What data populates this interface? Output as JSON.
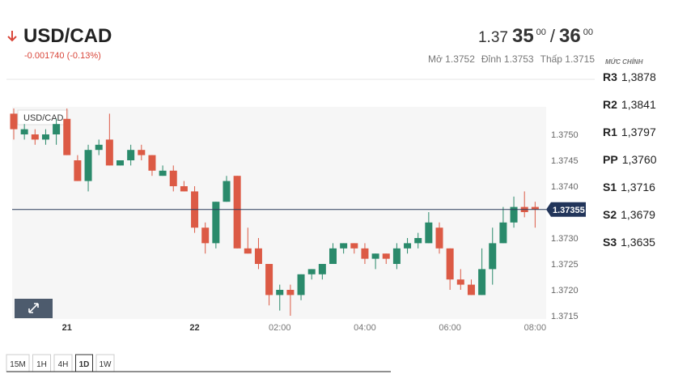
{
  "header": {
    "symbol": "USD/CAD",
    "change": "-0.001740 (-0.13%)",
    "bid": {
      "big": "1.37",
      "pips": "35",
      "fraction": "00"
    },
    "separator": "/",
    "ask": {
      "pips": "36",
      "fraction": "00"
    },
    "stats": [
      "Mở 1.3752",
      "Đỉnh 1.3753",
      "Thấp 1.3715"
    ]
  },
  "pivots": {
    "title": "MỨC CHÍNH",
    "rows": [
      {
        "label": "R3",
        "value": "1,3878"
      },
      {
        "label": "R2",
        "value": "1,3841"
      },
      {
        "label": "R1",
        "value": "1,3797"
      },
      {
        "label": "PP",
        "value": "1,3760"
      },
      {
        "label": "S1",
        "value": "1,3716"
      },
      {
        "label": "S2",
        "value": "1,3679"
      },
      {
        "label": "S3",
        "value": "1,3635"
      }
    ]
  },
  "timeframes": {
    "items": [
      "15M",
      "1H",
      "4H",
      "1D",
      "1W"
    ],
    "active": 3
  },
  "chart_data": {
    "type": "candlestick",
    "label": "USD/CAD",
    "categories": [
      null,
      null,
      null,
      null,
      null,
      "21",
      null,
      null,
      null,
      null,
      null,
      null,
      null,
      null,
      null,
      null,
      null,
      "22",
      null,
      null,
      null,
      null,
      null,
      null,
      null,
      "02:00",
      null,
      null,
      null,
      null,
      null,
      null,
      null,
      "04:00",
      null,
      null,
      null,
      null,
      null,
      null,
      null,
      "06:00",
      null,
      null,
      null,
      null,
      null,
      null,
      null,
      "08:00"
    ],
    "open": [
      1.3754,
      1.375,
      1.375,
      1.3749,
      1.375,
      1.3753,
      1.3745,
      1.3741,
      1.3747,
      1.3749,
      1.3744,
      1.3745,
      1.3747,
      1.3746,
      1.3742,
      1.3743,
      1.374,
      1.3739,
      1.3732,
      1.3729,
      1.3737,
      1.3742,
      1.3728,
      1.3728,
      1.3725,
      1.3719,
      1.372,
      1.3719,
      1.3723,
      1.3723,
      1.3725,
      1.3728,
      1.3729,
      1.3728,
      1.3726,
      1.3727,
      1.3725,
      1.3728,
      1.3729,
      1.3729,
      1.3732,
      1.3728,
      1.3722,
      1.3721,
      1.3719,
      1.3724,
      1.3729,
      1.3733,
      1.3736,
      1.3736
    ],
    "high": [
      1.3755,
      1.3752,
      1.3751,
      1.3751,
      1.3753,
      1.3755,
      1.3746,
      1.3748,
      1.3749,
      1.3754,
      1.3745,
      1.3748,
      1.3748,
      1.3746,
      1.3744,
      1.3744,
      1.3741,
      1.374,
      1.3733,
      1.3737,
      1.3742,
      1.3742,
      1.3732,
      1.373,
      1.3725,
      1.3721,
      1.3721,
      1.3723,
      1.3724,
      1.3725,
      1.3729,
      1.3729,
      1.3729,
      1.3729,
      1.3727,
      1.3727,
      1.3729,
      1.373,
      1.3731,
      1.3735,
      1.3733,
      1.3728,
      1.3724,
      1.3722,
      1.3728,
      1.3732,
      1.3736,
      1.3738,
      1.3739,
      1.3737
    ],
    "low": [
      1.3749,
      1.3749,
      1.3748,
      1.3748,
      1.3748,
      1.3746,
      1.3741,
      1.3739,
      1.3746,
      1.3744,
      1.3744,
      1.3744,
      1.3745,
      1.3742,
      1.3742,
      1.3739,
      1.3739,
      1.3731,
      1.3727,
      1.3728,
      1.3737,
      1.3728,
      1.3727,
      1.3724,
      1.3717,
      1.3716,
      1.3715,
      1.3718,
      1.3722,
      1.3722,
      1.3725,
      1.3727,
      1.3727,
      1.3725,
      1.3724,
      1.3725,
      1.3724,
      1.3727,
      1.3728,
      1.3729,
      1.3727,
      1.372,
      1.372,
      1.3719,
      1.3719,
      1.3721,
      1.3729,
      1.3732,
      1.3734,
      1.3732
    ],
    "close": [
      1.3751,
      1.3751,
      1.3749,
      1.375,
      1.3752,
      1.3746,
      1.3741,
      1.3747,
      1.3748,
      1.3744,
      1.3745,
      1.3747,
      1.3746,
      1.3743,
      1.3743,
      1.374,
      1.3739,
      1.3732,
      1.3729,
      1.3737,
      1.3741,
      1.3728,
      1.3727,
      1.3725,
      1.3719,
      1.372,
      1.3719,
      1.3723,
      1.3724,
      1.3725,
      1.3728,
      1.3729,
      1.3728,
      1.3726,
      1.3727,
      1.3726,
      1.3728,
      1.3729,
      1.373,
      1.3733,
      1.3728,
      1.3722,
      1.3721,
      1.3719,
      1.3724,
      1.3729,
      1.3733,
      1.3736,
      1.3735,
      1.37355
    ],
    "up_color": "#2a8a6b",
    "down_color": "#dc5a45",
    "current_price": 1.37355,
    "ylim": [
      1.3714,
      1.3755
    ],
    "yticks": [
      {
        "value": 1.375,
        "label": "1.3750"
      },
      1.3745,
      {
        "value": 1.374,
        "label": "1.3740"
      },
      {
        "value": 1.373,
        "label": "1.3730"
      },
      1.3725,
      {
        "value": 1.372,
        "label": "1.3720"
      },
      1.3715
    ],
    "grid": false
  }
}
